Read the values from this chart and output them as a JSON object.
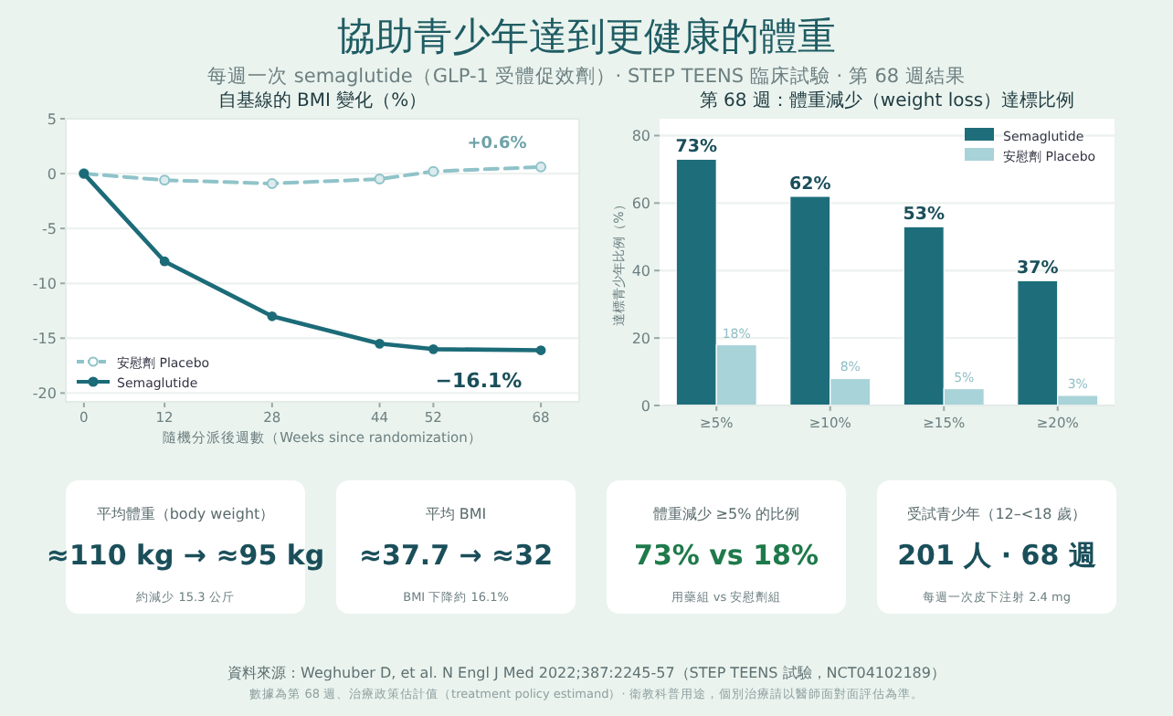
{
  "chart_data": [
    {
      "type": "other",
      "title": "協助青少年達到更健康的體重",
      "subtitle": "每週一次 semaglutide（GLP-1 受體促效劑）· STEP TEENS 臨床試驗 · 第 68 週結果",
      "annotations": [
        "資料來源：Weghuber D, et al. N Engl J Med 2022;387:2245-57（STEP TEENS 試驗，NCT04102189）",
        "數據為第 68 週、治療政策估計值（treatment policy estimand）· 衛教科普用途，個別治療請以醫師面對面評估為準。"
      ]
    },
    {
      "type": "line",
      "title": "自基線的 BMI 變化（%）",
      "xlabel": "隨機分派後週數（Weeks since randomization）",
      "x": [
        0,
        12,
        28,
        44,
        52,
        68
      ],
      "xlim": [
        -2.7,
        73.7
      ],
      "xticks": [
        0,
        12,
        28,
        44,
        52,
        68
      ],
      "ylim": [
        -20.8,
        5
      ],
      "yticks": [
        -20,
        -15,
        -10,
        -5,
        0,
        5
      ],
      "grid": "y",
      "legend": "bottom left",
      "marker": "circle",
      "series": [
        {
          "name": "安慰劑 Placebo",
          "color": "#8fc3c9",
          "line_style": "dashed",
          "values": [
            0,
            -0.6,
            -0.9,
            -0.5,
            0.2,
            0.6
          ]
        },
        {
          "name": "Semaglutide",
          "color": "#1c6b78",
          "line_style": "solid",
          "values": [
            0,
            -8,
            -13,
            -15.5,
            -16,
            -16.1
          ]
        }
      ],
      "annotations": [
        "+0.6%",
        "−16.1%"
      ]
    },
    {
      "type": "bar",
      "title": "第 68 週：體重減少（weight loss）達標比例",
      "ylabel": "達標青少年比例（%）",
      "categories": [
        "≥5%",
        "≥10%",
        "≥15%",
        "≥20%"
      ],
      "ylim": [
        0,
        85
      ],
      "yticks": [
        0,
        20,
        40,
        60,
        80
      ],
      "grid": "y",
      "legend": "top right",
      "series": [
        {
          "name": "Semaglutide",
          "color": "#1d6e7a",
          "values": [
            73,
            62,
            53,
            37
          ],
          "value_labels": [
            "73%",
            "62%",
            "53%",
            "37%"
          ]
        },
        {
          "name": "安慰劑 Placebo",
          "color": "#a8d3d8",
          "values": [
            18,
            8,
            5,
            3
          ],
          "value_labels": [
            "18%",
            "8%",
            "5%",
            "3%"
          ]
        }
      ]
    },
    {
      "type": "other",
      "title": "平均體重（body weight）",
      "color": "#1a4f5a",
      "annotations": [
        "≈110 kg → ≈95 kg",
        "約減少 15.3 公斤"
      ]
    },
    {
      "type": "other",
      "title": "平均 BMI",
      "color": "#1a4f5a",
      "annotations": [
        "≈37.7 → ≈32",
        "BMI 下降約 16.1%"
      ]
    },
    {
      "type": "other",
      "title": "體重減少 ≥5% 的比例",
      "color": "#1e7a4a",
      "annotations": [
        "73% vs 18%",
        "用藥組 vs 安慰劑組"
      ]
    },
    {
      "type": "other",
      "title": "受試青少年（12–<18 歲）",
      "color": "#1a4f5a",
      "annotations": [
        "201 人 · 68 週",
        "每週一次皮下注射 2.4 mg"
      ]
    }
  ]
}
